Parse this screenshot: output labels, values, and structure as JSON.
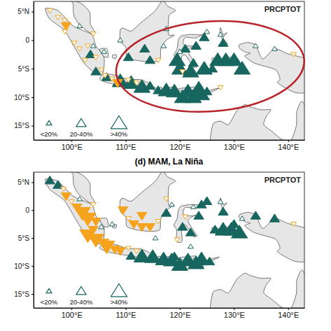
{
  "chart_data": [
    {
      "type": "scatter",
      "annotation": "PRCPTOT",
      "xlim": [
        93,
        143
      ],
      "ylim": [
        -17.5,
        6.8
      ],
      "xticks": [
        {
          "value": 100,
          "label": "100°E"
        },
        {
          "value": 110,
          "label": "110°E"
        },
        {
          "value": 120,
          "label": "120°E"
        },
        {
          "value": 130,
          "label": "130°E"
        },
        {
          "value": 140,
          "label": "140°E"
        }
      ],
      "yticks": [
        {
          "value": 5,
          "label": "5°N"
        },
        0,
        {
          "value": -5,
          "label": "5°S"
        },
        {
          "value": -10,
          "label": "10°S"
        },
        {
          "value": -15,
          "label": "15°S"
        }
      ],
      "size_breaks": [
        20,
        40
      ],
      "size_labels": [
        "<20%",
        "20-40%",
        ">40%"
      ],
      "series": [
        {
          "color": "#17665f",
          "marker": "triangle-up",
          "x": [
            101.5,
            104,
            103.5,
            106,
            109,
            110.5,
            113.5,
            114.5,
            117,
            117.5,
            119.5,
            120,
            122.5,
            123,
            125,
            124.5,
            127.5,
            128,
            127,
            128.5,
            130,
            131.5,
            134,
            137.5,
            122,
            124.5,
            126,
            106.5,
            109,
            111,
            113,
            114.5,
            116,
            117.5,
            119,
            120.5,
            121.5,
            122.5,
            124,
            123.5,
            125,
            104.5,
            121,
            120
          ],
          "values": [
            2.5,
            -1,
            -2.5,
            -2,
            0,
            -3,
            -1.5,
            -3.5,
            -1,
            2,
            -3.5,
            -5,
            -4,
            -1,
            1.5,
            0.5,
            1,
            -0.5,
            -3.5,
            -3.5,
            -3.5,
            -5,
            -1,
            -1.5,
            -5.5,
            -5,
            -5,
            -6.5,
            -7.2,
            -7.5,
            -8.2,
            -8,
            -8.8,
            -8.8,
            -9,
            -10,
            -9,
            -10,
            -9.5,
            -8.5,
            -9,
            -5.5,
            -1.5,
            -2
          ],
          "size": [
            10,
            10,
            30,
            10,
            10,
            30,
            30,
            30,
            10,
            10,
            50,
            50,
            30,
            30,
            10,
            30,
            10,
            30,
            50,
            50,
            50,
            50,
            10,
            10,
            50,
            50,
            30,
            30,
            50,
            50,
            50,
            30,
            30,
            50,
            50,
            50,
            50,
            50,
            50,
            50,
            30,
            30,
            30,
            10
          ]
        },
        {
          "color": "#f5a31c",
          "marker": "triangle-down",
          "x": [
            96,
            97.5,
            98.7,
            99,
            98.8,
            100.5,
            101.5,
            103,
            102.5,
            104.5,
            105.5,
            106.2,
            107.5,
            108.5,
            110.5,
            112,
            116,
            104,
            141,
            120.5,
            127.5
          ],
          "values": [
            5.2,
            4,
            3.5,
            2.5,
            1.5,
            -0.5,
            -1.5,
            -1,
            -3.5,
            -3,
            -5.2,
            -6.2,
            -6.8,
            -7.5,
            -7,
            -7.5,
            -3.5,
            1.1,
            -2.5,
            -5.5,
            -8.3
          ],
          "size": [
            10,
            10,
            10,
            30,
            10,
            10,
            10,
            10,
            10,
            10,
            10,
            10,
            10,
            30,
            10,
            10,
            10,
            10,
            10,
            10,
            10
          ]
        }
      ]
    },
    {
      "type": "scatter",
      "title": "(d) MAM, La Niña",
      "annotation": "PRCPTOT",
      "xlim": [
        93,
        143
      ],
      "ylim": [
        -17.5,
        6.8
      ],
      "xticks": [
        {
          "value": 100,
          "label": "100°E"
        },
        {
          "value": 110,
          "label": "110°E"
        },
        {
          "value": 120,
          "label": "120°E"
        },
        {
          "value": 130,
          "label": "130°E"
        },
        {
          "value": 140,
          "label": "140°E"
        }
      ],
      "yticks": [
        {
          "value": 5,
          "label": "5°N"
        },
        0,
        {
          "value": -5,
          "label": "5°S"
        },
        {
          "value": -10,
          "label": "10°S"
        },
        {
          "value": -15,
          "label": "15°S"
        }
      ],
      "size_breaks": [
        20,
        40
      ],
      "size_labels": [
        "<20%",
        "20-40%",
        ">40%"
      ],
      "series": [
        {
          "color": "#17665f",
          "marker": "triangle-up",
          "x": [
            96,
            97.5,
            101.5,
            105.5,
            107.5,
            117.5,
            118.5,
            124,
            125,
            122.5,
            123.5,
            120.5,
            122,
            127.5,
            128,
            128,
            129.5,
            131,
            131.5,
            134,
            137.5,
            130,
            126.5,
            111,
            113,
            115,
            117,
            118.5,
            120,
            121.5,
            123,
            124,
            125.5,
            122,
            115.5,
            119
          ],
          "values": [
            5.3,
            4.5,
            2,
            -3,
            -2.5,
            -0.5,
            1,
            1,
            1.6,
            0.6,
            -1,
            -3,
            -4,
            1.5,
            -0.3,
            -3.5,
            -3.5,
            -4,
            -1.5,
            -1,
            -1.5,
            -2.5,
            -3.5,
            -8.2,
            -8.3,
            -8.4,
            -8.8,
            -9,
            -9.8,
            -9,
            -9.5,
            -8.8,
            -9.2,
            -6.5,
            -5,
            -8.3
          ],
          "size": [
            30,
            30,
            10,
            10,
            10,
            30,
            10,
            30,
            30,
            10,
            30,
            30,
            30,
            10,
            30,
            50,
            50,
            50,
            10,
            30,
            30,
            30,
            30,
            30,
            50,
            50,
            50,
            50,
            50,
            50,
            50,
            50,
            30,
            10,
            10,
            30
          ]
        },
        {
          "color": "#f5a31c",
          "marker": "triangle-down",
          "x": [
            98.5,
            99,
            100,
            101,
            102,
            103,
            104.5,
            104,
            103,
            104.5,
            106,
            106.5,
            108,
            109,
            110.5,
            112,
            109.5,
            110.5,
            111.5,
            113,
            114.5,
            116,
            113,
            117.5,
            104,
            141,
            119.5,
            121
          ],
          "values": [
            3.8,
            2.5,
            1.5,
            0.5,
            -0.5,
            -1.5,
            -2,
            -3.5,
            -4.5,
            -5.3,
            -5.8,
            -6.5,
            -7,
            -7.3,
            -6.8,
            -7.3,
            0,
            -1.5,
            -2.5,
            -1,
            -3,
            -2,
            -3,
            2,
            1,
            -2.5,
            -5.3,
            -1.2
          ],
          "size": [
            10,
            30,
            10,
            30,
            50,
            50,
            30,
            30,
            50,
            50,
            30,
            50,
            30,
            30,
            10,
            10,
            30,
            10,
            30,
            30,
            30,
            10,
            30,
            10,
            10,
            10,
            10,
            10
          ]
        }
      ]
    }
  ]
}
